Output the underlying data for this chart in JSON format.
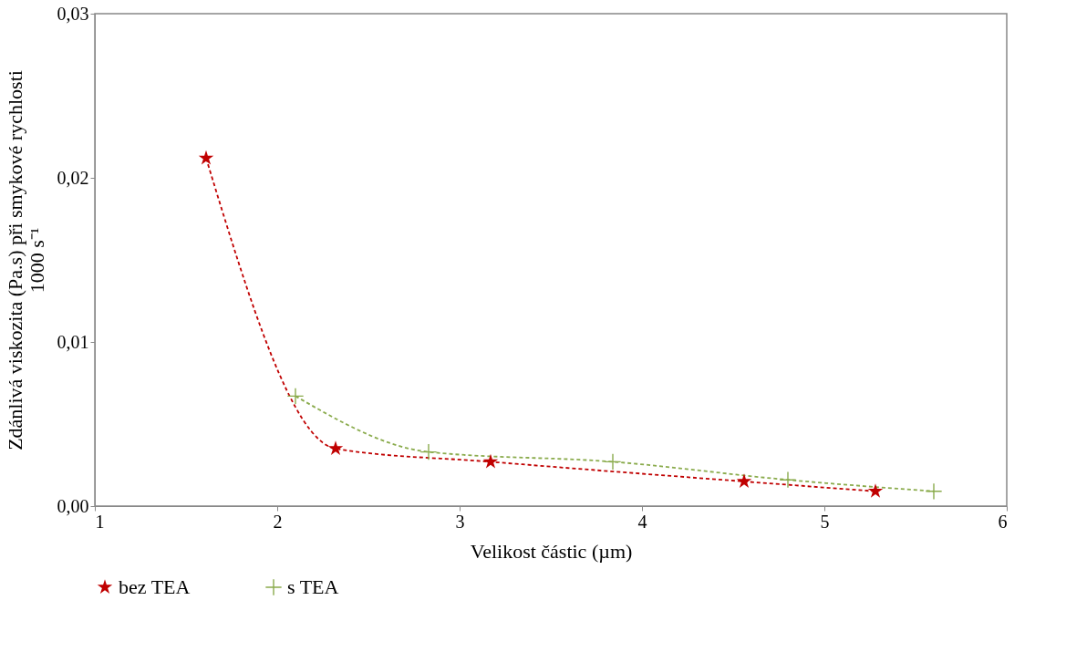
{
  "chart_data": {
    "type": "line",
    "xlabel": "Velikost částic (µm)",
    "ylabel": "Zdánlivá viskozita (Pa.s) při smykové rychlosti\n1000 s⁻¹",
    "xlim": [
      1,
      6
    ],
    "xticks": [
      1,
      2,
      3,
      4,
      5,
      6
    ],
    "ylim": [
      0,
      0.03
    ],
    "yticks": [
      {
        "value": 0,
        "label": "0,00"
      },
      {
        "value": 0.01,
        "label": "0,01"
      },
      {
        "value": 0.02,
        "label": "0,02"
      },
      {
        "value": 0.03,
        "label": "0,03"
      }
    ],
    "grid": false,
    "legend": "bottom",
    "line_style": "dashed",
    "series": [
      {
        "name": "bez TEA",
        "color": "#c00000",
        "marker": "star",
        "x": [
          1.61,
          2.32,
          3.17,
          4.56,
          5.28
        ],
        "values": [
          0.0212,
          0.0035,
          0.0027,
          0.0015,
          0.0009
        ]
      },
      {
        "name": "s TEA",
        "color": "#8aab4c",
        "marker": "cross",
        "x": [
          2.1,
          2.83,
          3.84,
          4.8,
          5.6
        ],
        "values": [
          0.0067,
          0.0033,
          0.0027,
          0.0016,
          0.0009
        ]
      }
    ]
  }
}
